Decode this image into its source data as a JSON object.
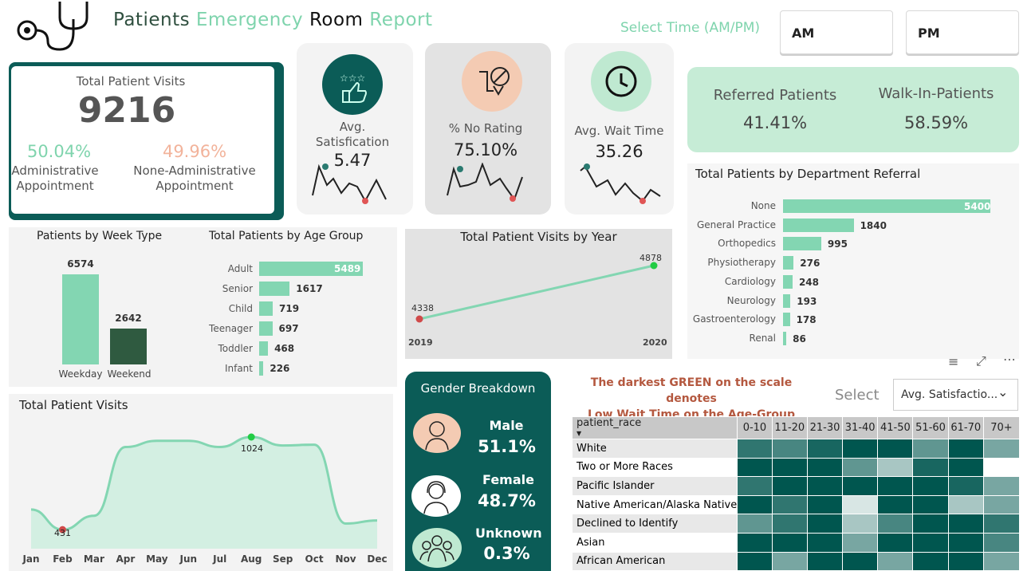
{
  "header": {
    "title_w1": "Patients",
    "title_w2": "Emergency",
    "title_w3": "Room",
    "title_w4": "Report",
    "select_time_label": "Select Time (AM/PM)",
    "am_label": "AM",
    "pm_label": "PM",
    "logo_icon": "stethoscope-icon"
  },
  "total_visits_card": {
    "title": "Total Patient Visits",
    "value": "9216",
    "admin_pct": "50.04%",
    "admin_label_1": "Administrative",
    "admin_label_2": "Appointment",
    "non_admin_pct": "49.96%",
    "non_admin_label_1": "None-Administrative",
    "non_admin_label_2": "Appointment"
  },
  "kpis": {
    "satisfaction": {
      "label_1": "Avg.",
      "label_2": "Satisfication",
      "value": "5.47",
      "icon": "thumbs-up-stars-icon"
    },
    "no_rating": {
      "label": "% No Rating",
      "value": "75.10%",
      "icon": "no-rating-icon"
    },
    "wait_time": {
      "label": "Avg. Wait Time",
      "value": "35.26",
      "icon": "clock-icon"
    }
  },
  "referral_card": {
    "referred_label": "Referred Patients",
    "referred_value": "41.41%",
    "walkin_label": "Walk-In-Patients",
    "walkin_value": "58.59%"
  },
  "department_chart": {
    "title": "Total Patients by Department Referral",
    "chart_data": {
      "type": "bar",
      "categories": [
        "None",
        "General Practice",
        "Orthopedics",
        "Physiotherapy",
        "Cardiology",
        "Neurology",
        "Gastroenterology",
        "Renal"
      ],
      "values": [
        5400,
        1840,
        995,
        276,
        248,
        193,
        178,
        86
      ]
    },
    "labels": [
      "None",
      "General Practice",
      "Orthopedics",
      "Physiotherapy",
      "Cardiology",
      "Neurology",
      "Gastroenterology",
      "Renal"
    ],
    "value_labels": [
      "5400",
      "1840",
      "995",
      "276",
      "248",
      "193",
      "178",
      "86"
    ]
  },
  "week_type_chart": {
    "title": "Patients by Week Type",
    "chart_data": {
      "type": "bar",
      "categories": [
        "Weekday",
        "Weekend"
      ],
      "values": [
        6574,
        2642
      ]
    },
    "cat_1": "Weekday",
    "cat_2": "Weekend",
    "val_1": "6574",
    "val_2": "2642"
  },
  "age_group_chart": {
    "title": "Total Patients by Age Group",
    "chart_data": {
      "type": "bar",
      "categories": [
        "Adult",
        "Senior",
        "Child",
        "Teenager",
        "Toddler",
        "Infant"
      ],
      "values": [
        5489,
        1617,
        719,
        697,
        468,
        226
      ]
    },
    "labels": [
      "Adult",
      "Senior",
      "Child",
      "Teenager",
      "Toddler",
      "Infant"
    ],
    "value_labels": [
      "5489",
      "1617",
      "719",
      "697",
      "468",
      "226"
    ]
  },
  "year_chart": {
    "title": "Total Patient Visits by Year",
    "chart_data": {
      "type": "line",
      "x": [
        "2019",
        "2020"
      ],
      "values": [
        4338,
        4878
      ]
    },
    "x1": "2019",
    "x2": "2020",
    "v1": "4338",
    "v2": "4878"
  },
  "monthly_chart": {
    "title": "Total Patient Visits",
    "chart_data": {
      "type": "area",
      "categories": [
        "Jan",
        "Feb",
        "Mar",
        "Apr",
        "May",
        "Jun",
        "Jul",
        "Aug",
        "Sep",
        "Oct",
        "Nov",
        "Dec"
      ],
      "values": [
        560,
        431,
        520,
        960,
        1000,
        1000,
        960,
        1024,
        970,
        975,
        470,
        490
      ]
    },
    "min_label": "431",
    "max_label": "1024",
    "months": [
      "Jan",
      "Feb",
      "Mar",
      "Apr",
      "May",
      "Jun",
      "Jul",
      "Aug",
      "Sep",
      "Oct",
      "Nov",
      "Dec"
    ]
  },
  "gender_card": {
    "title": "Gender Breakdown",
    "male_label": "Male",
    "male_value": "51.1%",
    "female_label": "Female",
    "female_value": "48.7%",
    "unknown_label": "Unknown",
    "unknown_value": "0.3%"
  },
  "heatmap": {
    "note_1": "The darkest GREEN on the scale denotes",
    "note_2": "Low Wait Time on the Age-Group",
    "select_label": "Select",
    "dropdown_value": "Avg. Satisfactio...",
    "row_header": "patient_race",
    "columns": [
      "0-10",
      "11-20",
      "21-30",
      "31-40",
      "41-50",
      "51-60",
      "61-70",
      "70+"
    ],
    "rows": [
      "White",
      "Two or More Races",
      "Pacific Islander",
      "Native American/Alaska Native",
      "Declined to Identify",
      "Asian",
      "African American"
    ],
    "intensity": [
      [
        0.8,
        0.7,
        0.9,
        1.0,
        1.0,
        0.6,
        1.0,
        0.5
      ],
      [
        1.0,
        1.0,
        1.0,
        0.6,
        0.3,
        0.9,
        1.0,
        0.0
      ],
      [
        0.8,
        1.0,
        1.0,
        1.0,
        1.0,
        1.0,
        0.9,
        0.5
      ],
      [
        1.0,
        0.8,
        1.0,
        0.1,
        1.0,
        1.0,
        0.3,
        0.5
      ],
      [
        0.6,
        0.8,
        1.0,
        0.3,
        0.7,
        1.0,
        1.0,
        0.8
      ],
      [
        1.0,
        1.0,
        1.0,
        0.5,
        1.0,
        1.0,
        1.0,
        0.7
      ],
      [
        1.0,
        0.5,
        1.0,
        1.0,
        0.5,
        1.0,
        1.0,
        0.5
      ]
    ],
    "dark_color": "#00564f",
    "light_color": "#f0f6f4"
  },
  "colors": {
    "accent_green": "#83d6b2",
    "teal": "#0b5c57",
    "peach": "#f2b39b",
    "dark_green": "#2f5a40"
  }
}
